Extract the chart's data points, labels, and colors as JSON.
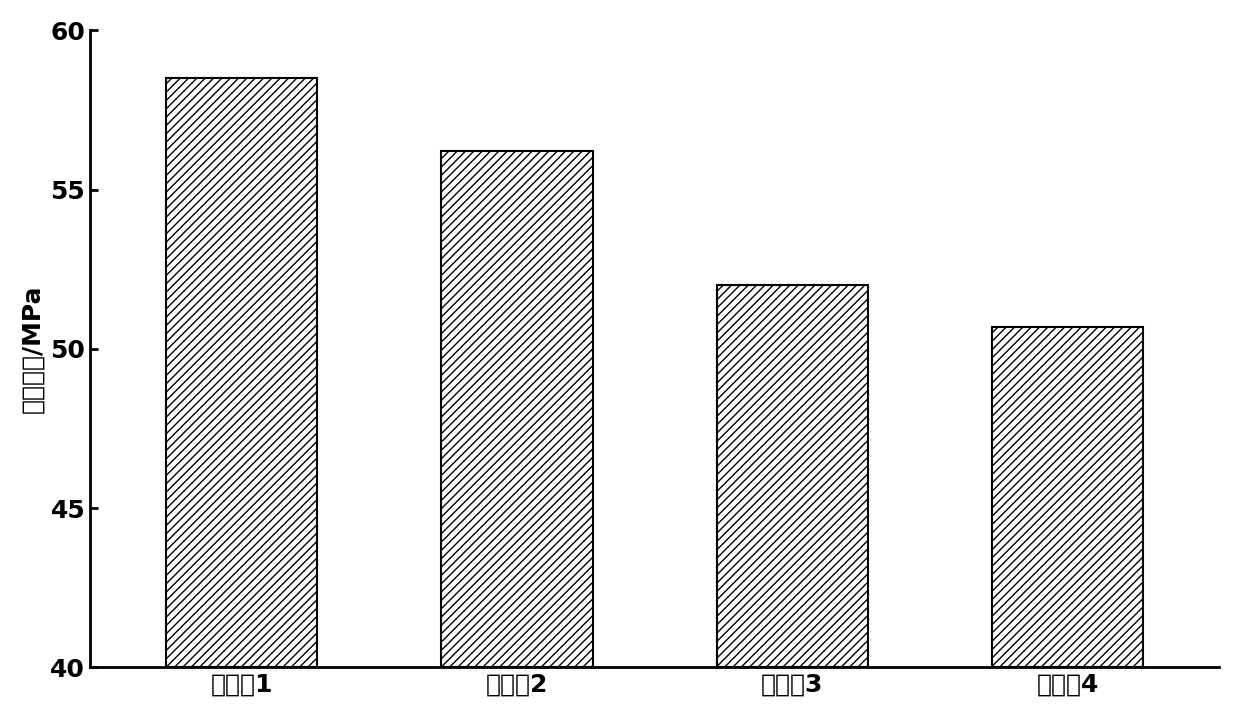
{
  "categories": [
    "实验组1",
    "实验组2",
    "实验组3",
    "实验组4"
  ],
  "values": [
    58.5,
    56.2,
    52.0,
    50.7
  ],
  "bar_color": "#ffffff",
  "bar_edgecolor": "#000000",
  "hatch": "////",
  "ylabel": "结合强度/MPa",
  "xlabel": "",
  "ylim": [
    40,
    60
  ],
  "yticks": [
    40,
    45,
    50,
    55,
    60
  ],
  "background_color": "#ffffff",
  "bar_width": 0.55,
  "ylabel_fontsize": 18,
  "tick_fontsize": 18,
  "xtick_fontsize": 18
}
